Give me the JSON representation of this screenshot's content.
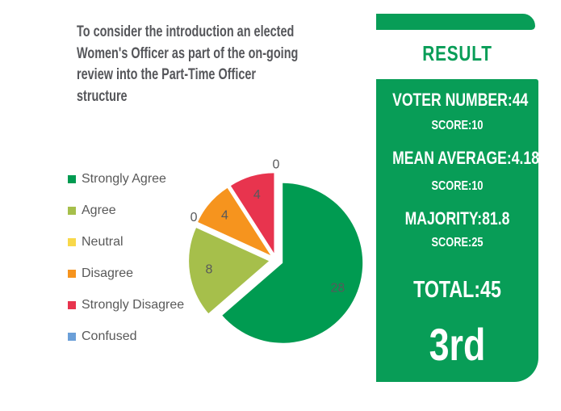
{
  "question": {
    "lines": [
      "To consider the introduction an elected",
      "Women's Officer as part of the on-going",
      "review into the Part-Time Officer",
      "structure"
    ],
    "color": "#55565a"
  },
  "chart_data": {
    "type": "pie",
    "title": "To consider the introduction an elected Women's Officer as part of the on-going review into the Part-Time Officer structure",
    "categories": [
      "Strongly Agree",
      "Agree",
      "Neutral",
      "Disagree",
      "Strongly Disagree",
      "Confused"
    ],
    "values": [
      28,
      8,
      0,
      4,
      4,
      0
    ],
    "colors": [
      "#009b51",
      "#a6bf4b",
      "#f8d84a",
      "#f6941e",
      "#e8344e",
      "#6b9fd8"
    ],
    "legend_position": "left",
    "direction": "clockwise",
    "start_angle": "12-oclock",
    "exploded": true,
    "data_labels": true,
    "label_color": "#58595b"
  },
  "result_panel": {
    "heading": "RESULT",
    "lines": [
      "VOTER NUMBER:44",
      "SCORE:10",
      "MEAN AVERAGE:4.18",
      "SCORE:10",
      "MAJORITY:81.8",
      "SCORE:25"
    ],
    "total": "TOTAL:45",
    "rank": "3rd",
    "green": "#089d57",
    "text_color": "#ffffff"
  }
}
